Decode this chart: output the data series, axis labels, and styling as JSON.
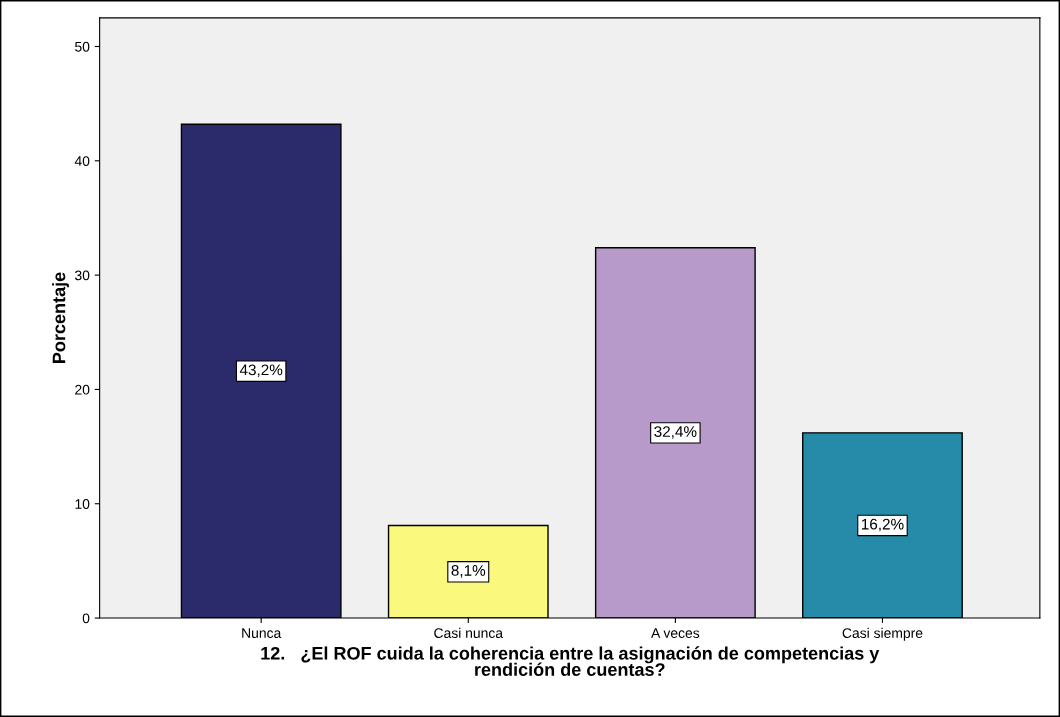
{
  "chart_data": {
    "type": "bar",
    "xlabel": "12.   ¿El ROF cuida la coherencia entre la asignación de competencias y\nrendición de cuentas?",
    "ylabel": "Porcentaje",
    "categories": [
      "Nunca",
      "Casi nunca",
      "A veces",
      "Casi siempre"
    ],
    "values": [
      43.2,
      8.1,
      32.4,
      16.2
    ],
    "colors": [
      "#2b2a6b",
      "#fbf87e",
      "#b89aca",
      "#268ba8"
    ],
    "value_labels": [
      "43,2%",
      "8,1%",
      "32,4%",
      "16,2%"
    ],
    "ylim": [
      0,
      52.5
    ],
    "yticks": [
      0,
      10,
      20,
      30,
      40,
      50
    ],
    "grid": false,
    "legend": false
  }
}
